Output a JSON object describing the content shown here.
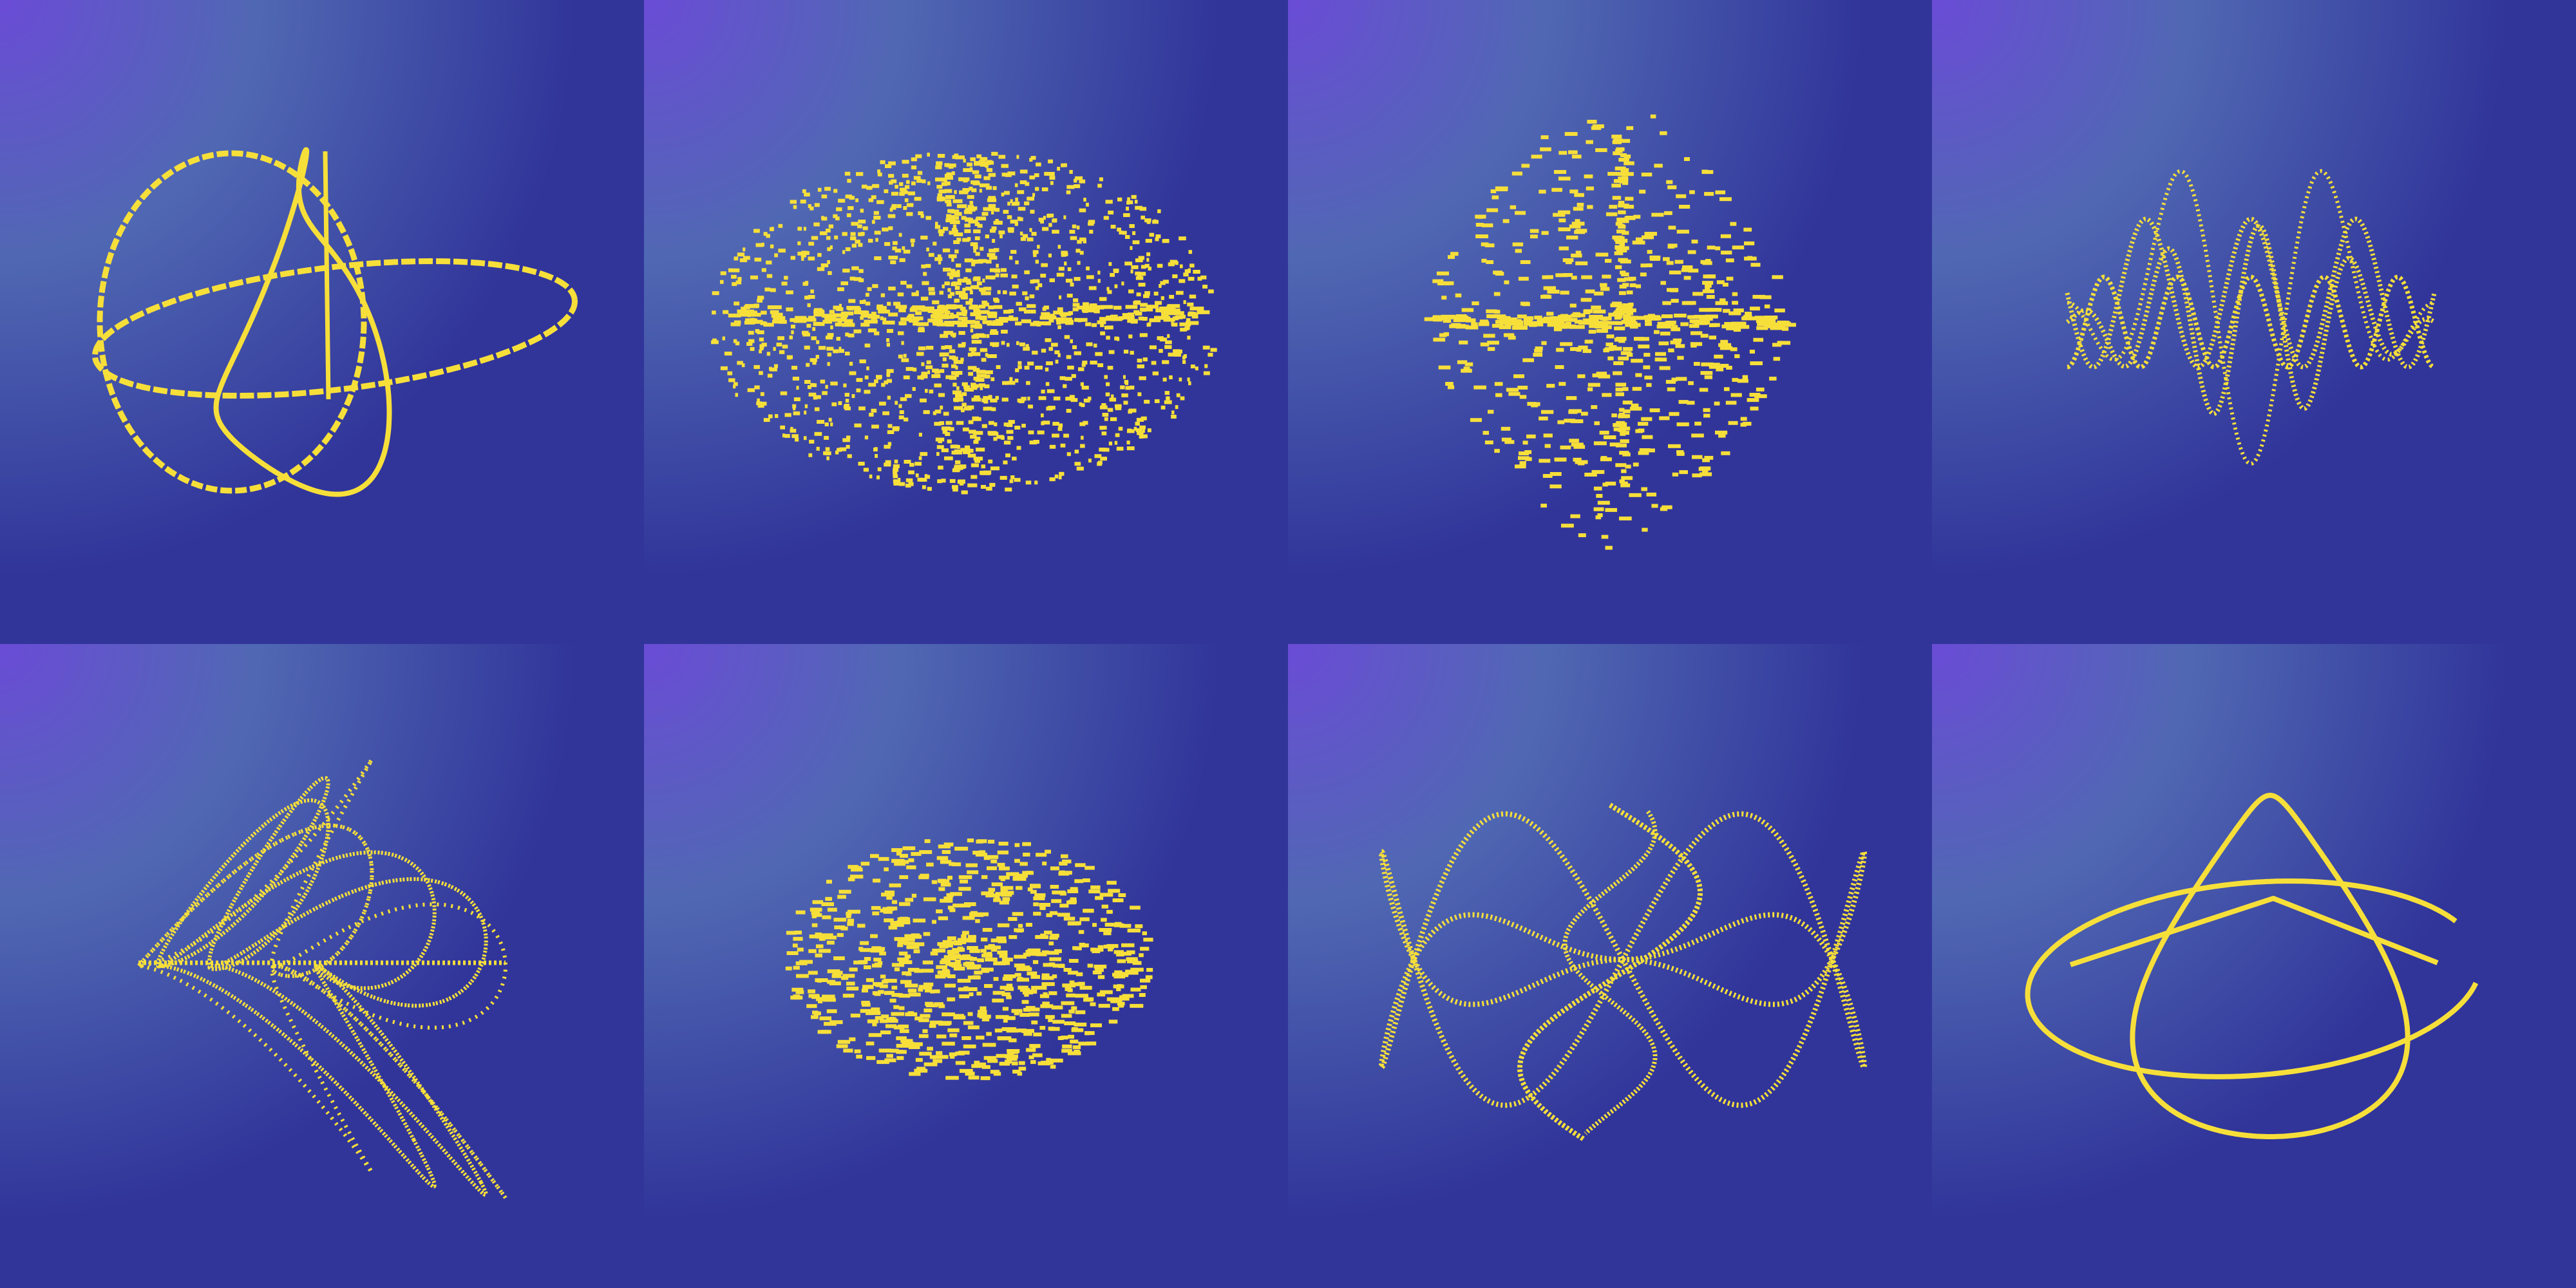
{
  "colors": {
    "glow": "#6a4cd6",
    "mid": "#5068b3",
    "base": "#31359a",
    "curve": "#f7df3a"
  },
  "panels": [
    {
      "shape": "solid loops"
    },
    {
      "shape": "scattered dashes ellipse"
    },
    {
      "shape": "scattered dashes diamond"
    },
    {
      "shape": "dotted sine waves"
    },
    {
      "shape": "dotted rosette"
    },
    {
      "shape": "dense scattered dashes"
    },
    {
      "shape": "dotted spiral waves"
    },
    {
      "shape": "solid figure loop"
    }
  ]
}
